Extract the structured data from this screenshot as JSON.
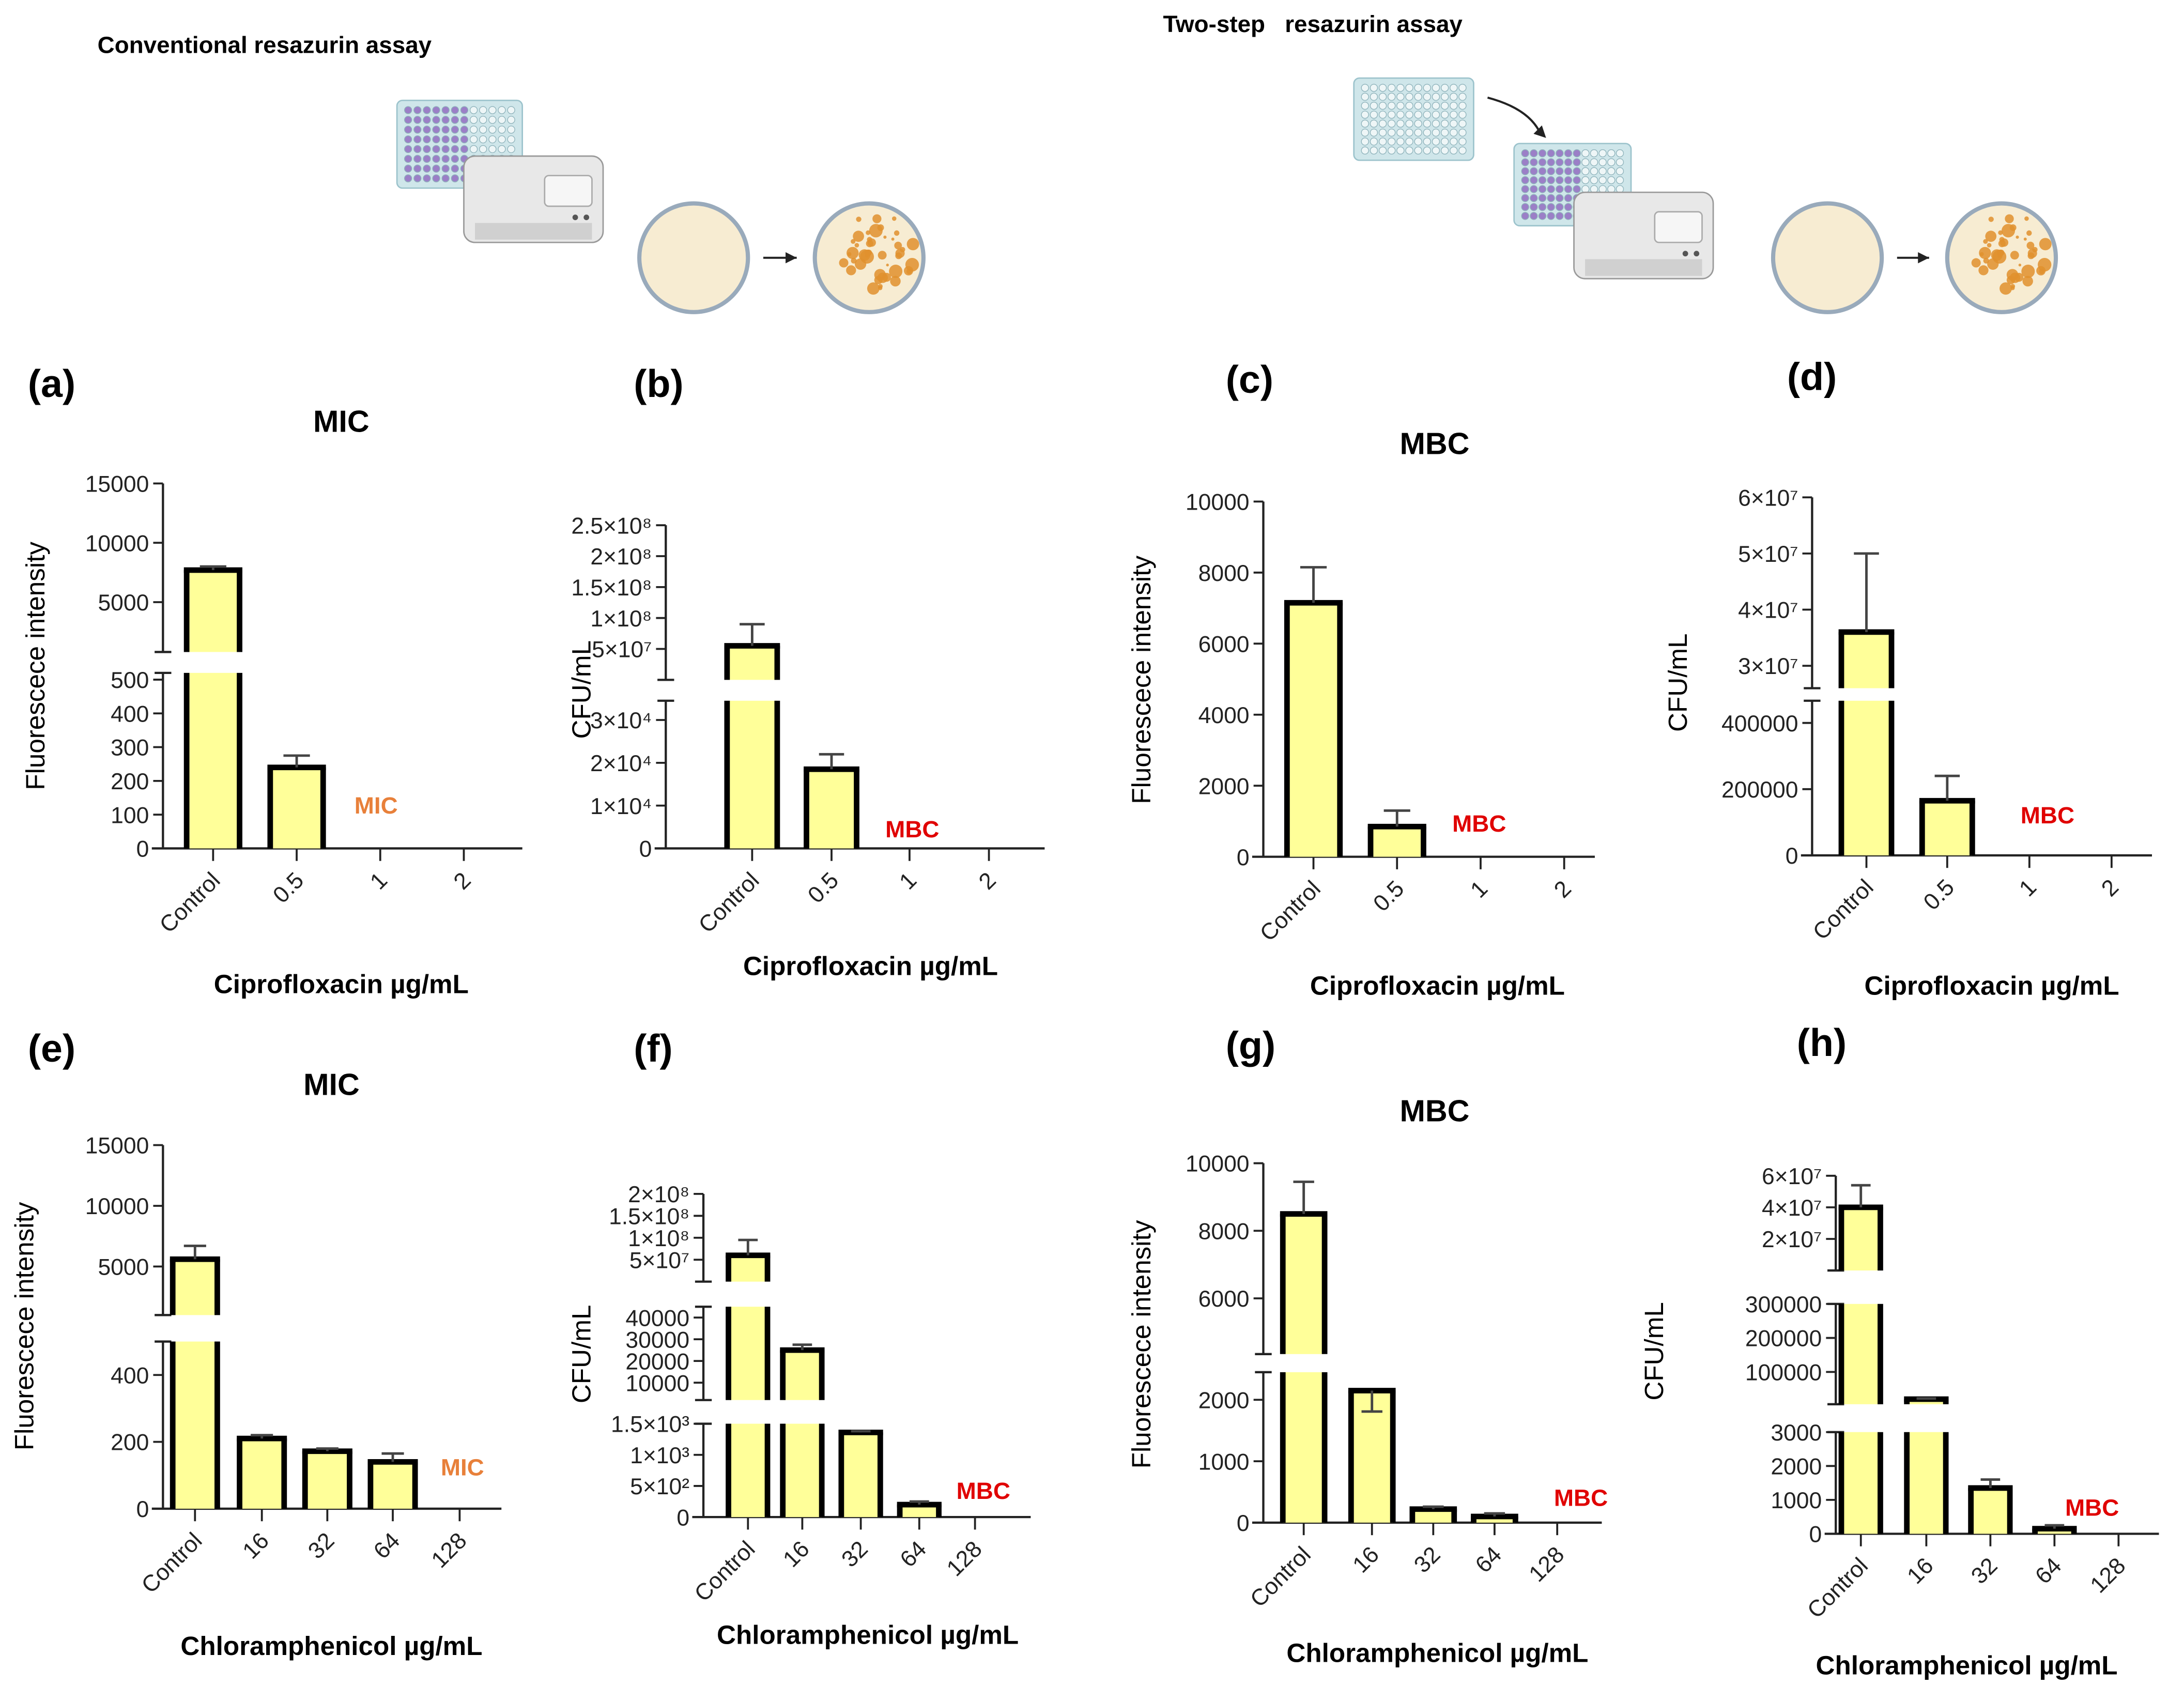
{
  "header": {
    "left_title": "Conventional resazurin assay",
    "right_title": "Two-step   resazurin assay"
  },
  "colors": {
    "bar_fill": "#FFFF99",
    "bar_stroke": "#000000",
    "mic": "#E8803A",
    "mbc": "#E00000",
    "error": "#444444"
  },
  "chart_data": [
    {
      "panel": "(a)",
      "type": "bar",
      "title": "MIC",
      "ylabel": "Fluorescece intensity",
      "xlabel": "Ciprofloxacin µg/mL",
      "categories": [
        "Control",
        "0.5",
        "1",
        "2"
      ],
      "values": [
        7700,
        240,
        0,
        0
      ],
      "error_upper": [
        8000,
        275,
        0,
        0
      ],
      "annotation": {
        "text": "MIC",
        "color": "#E8803A"
      },
      "y_segments": [
        {
          "range": [
            800,
            15000
          ],
          "ticks": [
            5000,
            10000,
            15000
          ],
          "tick_labels": [
            "5000",
            "10000",
            "15000"
          ]
        },
        {
          "range": [
            0,
            520
          ],
          "ticks": [
            0,
            100,
            200,
            300,
            400,
            500
          ],
          "tick_labels": [
            "0",
            "100",
            "200",
            "300",
            "400",
            "500"
          ]
        }
      ]
    },
    {
      "panel": "(b)",
      "type": "bar",
      "title": "",
      "ylabel": "CFU/mL",
      "xlabel": "Ciprofloxacin µg/mL",
      "categories": [
        "Control",
        "0.5",
        "1",
        "2"
      ],
      "values": [
        55000000,
        18500,
        0,
        0
      ],
      "error_upper": [
        90000000,
        22000,
        0,
        0
      ],
      "annotation": {
        "text": "MBC",
        "color": "#E00000"
      },
      "y_segments": [
        {
          "range": [
            0,
            250000000
          ],
          "ticks": [
            50000000,
            100000000,
            150000000,
            200000000,
            250000000
          ],
          "tick_labels": [
            "5×10⁷",
            "1×10⁸",
            "1.5×10⁸",
            "2×10⁸",
            "2.5×10⁸"
          ]
        },
        {
          "range": [
            0,
            34500
          ],
          "ticks": [
            0,
            10000,
            20000,
            30000
          ],
          "tick_labels": [
            "0",
            "1×10⁴",
            "2×10⁴",
            "3×10⁴"
          ]
        }
      ]
    },
    {
      "panel": "(c)",
      "type": "bar",
      "title": "MBC",
      "ylabel": "Fluorescece intensity",
      "xlabel": "Ciprofloxacin µg/mL",
      "categories": [
        "Control",
        "0.5",
        "1",
        "2"
      ],
      "values": [
        7150,
        850,
        0,
        0
      ],
      "error_upper": [
        8150,
        1300,
        0,
        0
      ],
      "annotation": {
        "text": "MBC",
        "color": "#E00000"
      },
      "y_segments": [
        {
          "range": [
            0,
            10000
          ],
          "ticks": [
            0,
            2000,
            4000,
            6000,
            8000,
            10000
          ],
          "tick_labels": [
            "0",
            "2000",
            "4000",
            "6000",
            "8000",
            "10000"
          ]
        }
      ]
    },
    {
      "panel": "(d)",
      "type": "bar",
      "title": "",
      "ylabel": "CFU/mL",
      "xlabel": "Ciprofloxacin µg/mL",
      "categories": [
        "Control",
        "0.5",
        "1",
        "2"
      ],
      "values": [
        36000000,
        165000,
        0,
        0
      ],
      "error_upper": [
        50000000,
        240000,
        0,
        0
      ],
      "annotation": {
        "text": "MBC",
        "color": "#E00000"
      },
      "y_segments": [
        {
          "range": [
            26000000,
            60000000
          ],
          "ticks": [
            30000000,
            40000000,
            50000000,
            60000000
          ],
          "tick_labels": [
            "3×10⁷",
            "4×10⁷",
            "5×10⁷",
            "6×10⁷"
          ]
        },
        {
          "range": [
            0,
            467000
          ],
          "ticks": [
            0,
            200000,
            400000
          ],
          "tick_labels": [
            "0",
            "200000",
            "400000"
          ]
        }
      ]
    },
    {
      "panel": "(e)",
      "type": "bar",
      "title": "MIC",
      "ylabel": "Fluorescece intensity",
      "xlabel": "Chloramphenicol µg/mL",
      "categories": [
        "Control",
        "16",
        "32",
        "64",
        "128"
      ],
      "values": [
        5600,
        210,
        172,
        140,
        0
      ],
      "error_upper": [
        6700,
        220,
        180,
        165,
        0
      ],
      "annotation": {
        "text": "MIC",
        "color": "#E8803A"
      },
      "y_segments": [
        {
          "range": [
            1000,
            15000
          ],
          "ticks": [
            5000,
            10000,
            15000
          ],
          "tick_labels": [
            "5000",
            "10000",
            "15000"
          ]
        },
        {
          "range": [
            0,
            500
          ],
          "ticks": [
            0,
            200,
            400
          ],
          "tick_labels": [
            "0",
            "200",
            "400"
          ]
        }
      ]
    },
    {
      "panel": "(f)",
      "type": "bar",
      "title": "",
      "ylabel": "CFU/mL",
      "xlabel": "Chloramphenicol µg/mL",
      "categories": [
        "Control",
        "16",
        "32",
        "64",
        "128"
      ],
      "values": [
        60000000,
        25000,
        1360,
        200,
        0
      ],
      "error_upper": [
        95000000,
        27500,
        1380,
        250,
        0
      ],
      "annotation": {
        "text": "MBC",
        "color": "#E00000"
      },
      "y_segments": [
        {
          "range": [
            0,
            200000000
          ],
          "ticks": [
            50000000,
            100000000,
            150000000,
            200000000
          ],
          "tick_labels": [
            "5×10⁷",
            "1×10⁸",
            "1.5×10⁸",
            "2×10⁸"
          ]
        },
        {
          "range": [
            2000,
            45000
          ],
          "ticks": [
            10000,
            20000,
            30000,
            40000
          ],
          "tick_labels": [
            "10000",
            "20000",
            "30000",
            "40000"
          ]
        },
        {
          "range": [
            0,
            1500
          ],
          "ticks": [
            0,
            500,
            1000,
            1500
          ],
          "tick_labels": [
            "0",
            "5×10²",
            "1×10³",
            "1.5×10³"
          ]
        }
      ]
    },
    {
      "panel": "(g)",
      "type": "bar",
      "title": "MBC",
      "ylabel": "Fluorescece intensity",
      "xlabel": "Chloramphenicol µg/mL",
      "categories": [
        "Control",
        "16",
        "32",
        "64",
        "128"
      ],
      "values": [
        8500,
        2150,
        220,
        100,
        0
      ],
      "error_upper": [
        9450,
        2650,
        260,
        150,
        0
      ],
      "annotation": {
        "text": "MBC",
        "color": "#E00000"
      },
      "y_segments": [
        {
          "range": [
            4350,
            10000
          ],
          "ticks": [
            6000,
            8000,
            10000
          ],
          "tick_labels": [
            "6000",
            "8000",
            "10000"
          ]
        },
        {
          "range": [
            0,
            2450
          ],
          "ticks": [
            0,
            1000,
            2000
          ],
          "tick_labels": [
            "0",
            "1000",
            "2000"
          ]
        }
      ]
    },
    {
      "panel": "(h)",
      "type": "bar",
      "title": "",
      "ylabel": "CFU/mL",
      "xlabel": "Chloramphenicol µg/mL",
      "categories": [
        "Control",
        "16",
        "32",
        "64",
        "128"
      ],
      "values": [
        40000000,
        20000,
        1350,
        150,
        0
      ],
      "error_upper": [
        54000000,
        22000,
        1600,
        250,
        0
      ],
      "annotation": {
        "text": "MBC",
        "color": "#E00000"
      },
      "y_segments": [
        {
          "range": [
            0,
            60000000
          ],
          "ticks": [
            20000000,
            40000000,
            60000000
          ],
          "tick_labels": [
            "2×10⁷",
            "4×10⁷",
            "6×10⁷"
          ]
        },
        {
          "range": [
            5000,
            300000
          ],
          "ticks": [
            100000,
            200000,
            300000
          ],
          "tick_labels": [
            "100000",
            "200000",
            "300000"
          ]
        },
        {
          "range": [
            0,
            3000
          ],
          "ticks": [
            0,
            1000,
            2000,
            3000
          ],
          "tick_labels": [
            "0",
            "1000",
            "2000",
            "3000"
          ]
        }
      ]
    }
  ]
}
